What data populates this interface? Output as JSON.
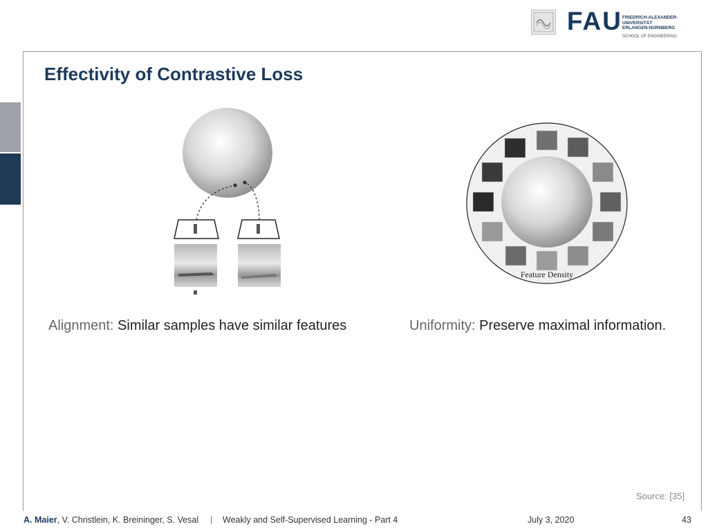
{
  "header": {
    "logo_text": "FAU",
    "university_name": [
      "FRIEDRICH-ALEXANDER-",
      "UNIVERSITÄT",
      "ERLANGEN-NÜRNBERG"
    ],
    "school": "SCHOOL OF ENGINEERING"
  },
  "slide": {
    "title": "Effectivity of Contrastive Loss",
    "left": {
      "term": "Alignment:",
      "text": " Similar samples have similar features"
    },
    "right": {
      "term": "Uniformity:",
      "text": " Preserve maximal information.",
      "diagram_label": "Feature Density"
    },
    "source": "Source: [35]"
  },
  "footer": {
    "author_main": "A. Maier",
    "authors_rest": ", V. Christlein, K. Breininger, S. Vesal",
    "separator": "|",
    "course": "Weakly and Self-Supervised Learning - Part 4",
    "date": "July 3, 2020",
    "page": "43"
  },
  "colors": {
    "accent": "#1d3a5c",
    "side_light": "#9ea3a9",
    "side_dark": "#1f3a55"
  }
}
